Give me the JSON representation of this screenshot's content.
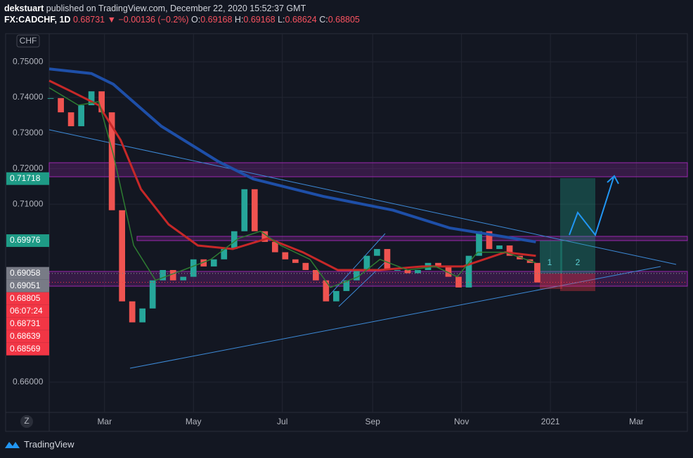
{
  "header": {
    "publisher": "dekstuart",
    "published": "published on TradingView.com, December 22, 2020 15:52:37 GMT",
    "symbol": "FX:CADCHF, 1D",
    "last": "0.68731",
    "arrow": "▼",
    "change": "−0.00136 (−0.2%)",
    "ohlc": [
      {
        "key": "O:",
        "value": "0.69168"
      },
      {
        "key": "H:",
        "value": "0.69168"
      },
      {
        "key": "L:",
        "value": "0.68624"
      },
      {
        "key": "C:",
        "value": "0.68805"
      }
    ]
  },
  "currency": "CHF",
  "zoom_button": "Z",
  "brand": "TradingView",
  "chart_data": {
    "type": "candlestick",
    "x": [
      23,
      30,
      37,
      44,
      51,
      58,
      65,
      72,
      79,
      86,
      93,
      100,
      107,
      114,
      121,
      128,
      135,
      142,
      149,
      156,
      163,
      170,
      177,
      184,
      191,
      198,
      205,
      212,
      219,
      226,
      233,
      240,
      247,
      254,
      261,
      268,
      275,
      282,
      289,
      296,
      303,
      310,
      317,
      324,
      331,
      338,
      345,
      352,
      357
    ],
    "values": [
      0.7398,
      0.7358,
      0.7319,
      0.7378,
      0.7417,
      0.7358,
      0.7083,
      0.6827,
      0.6768,
      0.6807,
      0.6886,
      0.6915,
      0.6886,
      0.6896,
      0.6945,
      0.6925,
      0.6945,
      0.6974,
      0.7024,
      0.7142,
      0.7024,
      0.6994,
      0.6965,
      0.6945,
      0.6935,
      0.6915,
      0.6886,
      0.6827,
      0.6856,
      0.6886,
      0.6915,
      0.6955,
      0.6974,
      0.6915,
      0.6915,
      0.6906,
      0.6915,
      0.6935,
      0.6925,
      0.6896,
      0.6866,
      0.6955,
      0.7024,
      0.6974,
      0.6984,
      0.6955,
      0.6945,
      0.6935,
      0.688
    ],
    "up_color": "#26a69a",
    "down_color": "#ef5350",
    "series": [
      {
        "color": "#1e4fa8",
        "x": [
          22,
          51,
          66,
          99,
          138,
          162,
          210,
          258,
          297,
          356
        ],
        "values": [
          0.748,
          0.7467,
          0.7437,
          0.7319,
          0.722,
          0.7171,
          0.7122,
          0.7083,
          0.7033,
          0.6994
        ]
      },
      {
        "color": "#c62828",
        "x": [
          22,
          37,
          56,
          71,
          85,
          104,
          124,
          148,
          172,
          196,
          220,
          249,
          278,
          306,
          335,
          356
        ],
        "values": [
          0.7447,
          0.7417,
          0.7378,
          0.728,
          0.7142,
          0.7043,
          0.6984,
          0.6974,
          0.7004,
          0.6965,
          0.6915,
          0.6915,
          0.6925,
          0.6925,
          0.6965,
          0.6955
        ]
      },
      {
        "color": "#2e7d32",
        "x": [
          22,
          42,
          56,
          66,
          80,
          95,
          114,
          133,
          152,
          167,
          181,
          201,
          215,
          234,
          249,
          268,
          287,
          302,
          316,
          335,
          356
        ],
        "values": [
          0.7427,
          0.7378,
          0.7388,
          0.724,
          0.6984,
          0.6886,
          0.6915,
          0.6945,
          0.7004,
          0.7024,
          0.6984,
          0.6945,
          0.6866,
          0.6896,
          0.6945,
          0.6915,
          0.6925,
          0.6896,
          0.6965,
          0.6965,
          0.6935
        ]
      }
    ],
    "xlim": [
      22,
      460
    ],
    "ylim": [
      0.6515,
      0.7579
    ],
    "xticks": [
      {
        "value": 60,
        "label": "Mar"
      },
      {
        "value": 121,
        "label": "May"
      },
      {
        "value": 182,
        "label": "Jul"
      },
      {
        "value": 244,
        "label": "Sep"
      },
      {
        "value": 305,
        "label": "Nov"
      },
      {
        "value": 366,
        "label": "2021"
      },
      {
        "value": 425,
        "label": "Mar"
      }
    ],
    "yticks": [
      {
        "value": 0.75,
        "label": "0.75000"
      },
      {
        "value": 0.74,
        "label": "0.74000"
      },
      {
        "value": 0.73,
        "label": "0.73000"
      },
      {
        "value": 0.72,
        "label": "0.72000"
      },
      {
        "value": 0.71,
        "label": "0.71000"
      },
      {
        "value": 0.66,
        "label": "0.66000"
      }
    ],
    "grid": true,
    "price_labels": [
      {
        "value": 0.71718,
        "color": "#1e9b86"
      },
      {
        "value": 0.69976,
        "color": "#1e9b86"
      },
      {
        "value": 0.69058,
        "color": "#787b86"
      },
      {
        "value": 0.69051,
        "color": "#787b86"
      },
      {
        "value": 0.68805,
        "color": "#f23645"
      },
      {
        "label": "06:07:24",
        "color": "#f23645"
      },
      {
        "value": 0.68731,
        "color": "#f23645"
      },
      {
        "value": 0.68639,
        "color": "#f23645"
      },
      {
        "value": 0.68569,
        "color": "#f23645"
      }
    ],
    "annotations": [
      "1",
      "2"
    ]
  }
}
